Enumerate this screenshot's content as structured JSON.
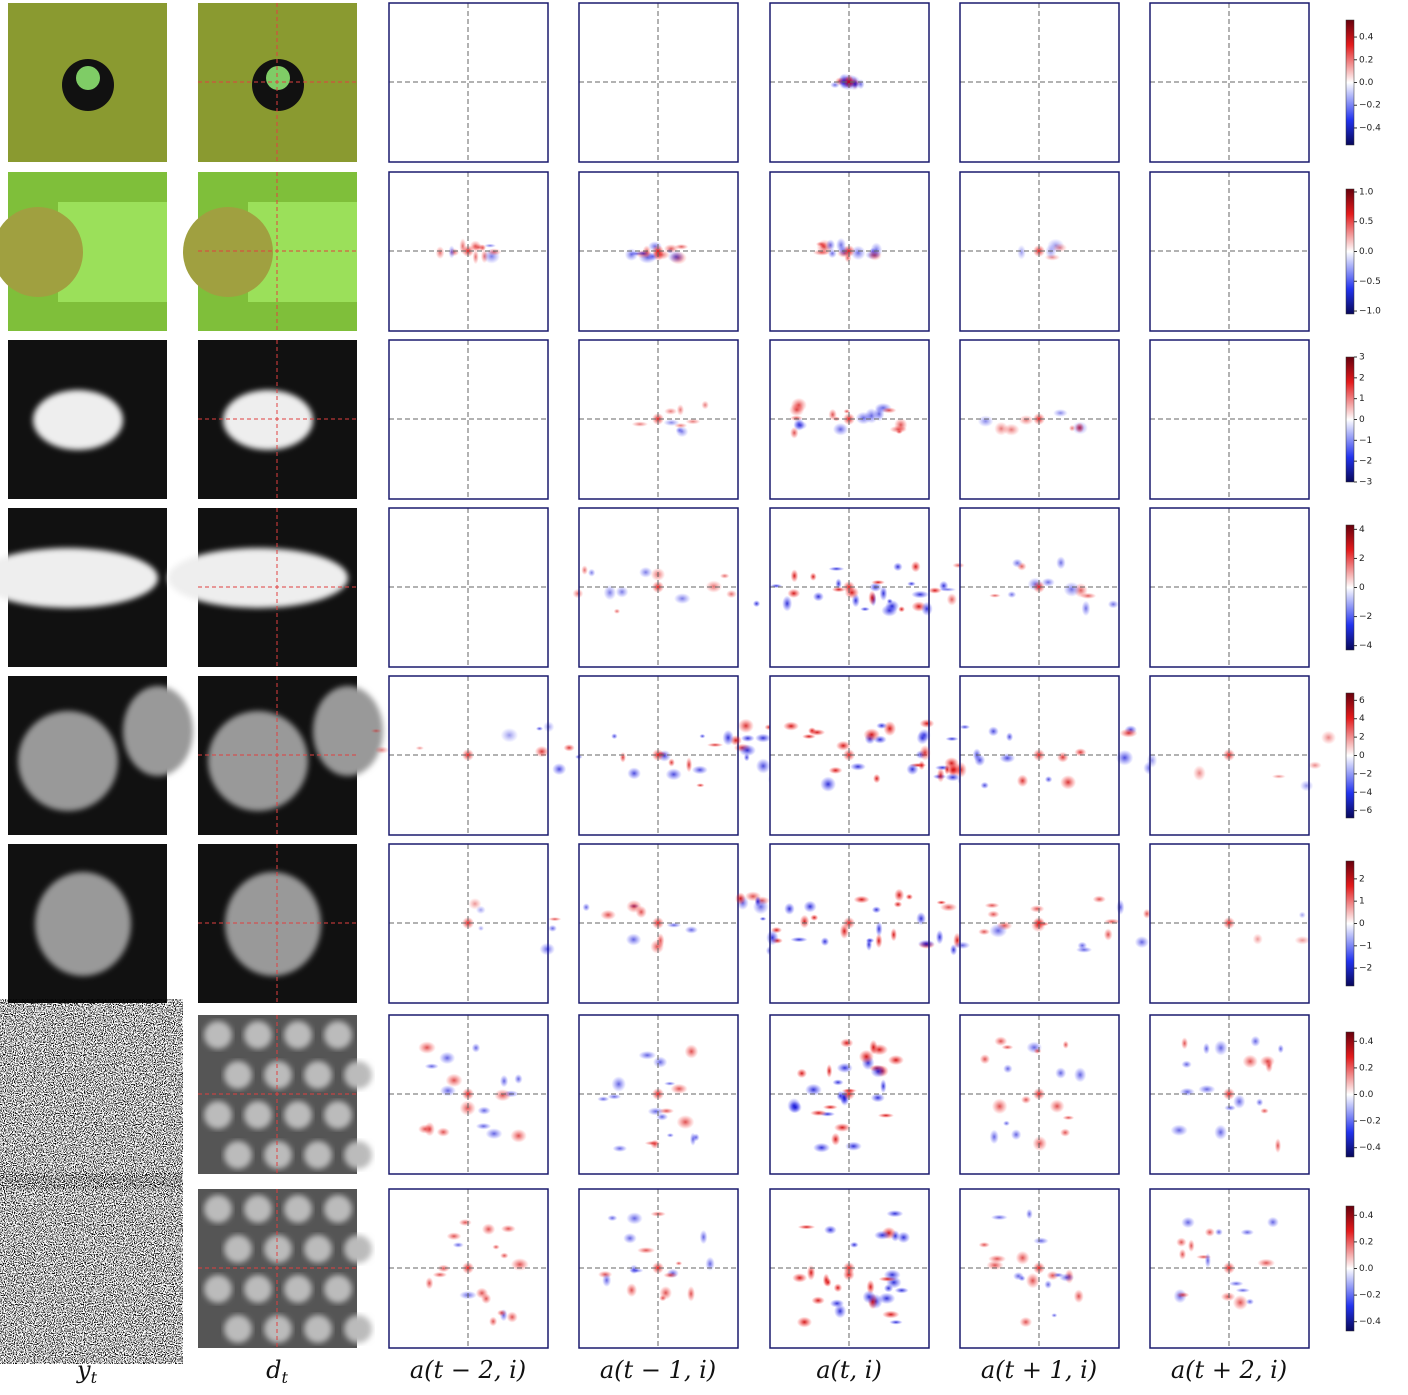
{
  "columns": [
    {
      "text": "y",
      "sub": "t"
    },
    {
      "text": "d",
      "sub": "t"
    },
    {
      "text": "a(t − 2, i)"
    },
    {
      "text": "a(t − 1, i)"
    },
    {
      "text": "a(t, i)"
    },
    {
      "text": "a(t + 1, i)"
    },
    {
      "text": "a(t + 2, i)"
    }
  ],
  "rows": [
    {
      "colorbar": {
        "lim": [
          -0.55,
          0.55
        ],
        "ticks": [
          {
            "value": 0.4,
            "label": "0.4"
          },
          {
            "value": 0.2,
            "label": "0.2"
          },
          {
            "value": 0,
            "label": "0.0"
          },
          {
            "value": -0.2,
            "label": "−0.2"
          },
          {
            "value": -0.4,
            "label": "−0.4"
          }
        ]
      }
    },
    {
      "colorbar": {
        "lim": [
          -1.05,
          1.05
        ],
        "ticks": [
          {
            "value": 1,
            "label": "1.0"
          },
          {
            "value": 0.5,
            "label": "0.5"
          },
          {
            "value": 0,
            "label": "0.0"
          },
          {
            "value": -0.5,
            "label": "−0.5"
          },
          {
            "value": -1,
            "label": "−1.0"
          }
        ]
      }
    },
    {
      "colorbar": {
        "lim": [
          -3,
          3
        ],
        "ticks": [
          {
            "value": 3,
            "label": "3"
          },
          {
            "value": 2,
            "label": "2"
          },
          {
            "value": 1,
            "label": "1"
          },
          {
            "value": 0,
            "label": "0"
          },
          {
            "value": -1,
            "label": "−1"
          },
          {
            "value": -2,
            "label": "−2"
          },
          {
            "value": -3,
            "label": "−3"
          }
        ]
      }
    },
    {
      "colorbar": {
        "lim": [
          -4.3,
          4.3
        ],
        "ticks": [
          {
            "value": 4,
            "label": "4"
          },
          {
            "value": 2,
            "label": "2"
          },
          {
            "value": 0,
            "label": "0"
          },
          {
            "value": -2,
            "label": "−2"
          },
          {
            "value": -4,
            "label": "−4"
          }
        ]
      }
    },
    {
      "colorbar": {
        "lim": [
          -6.8,
          6.8
        ],
        "ticks": [
          {
            "value": 6,
            "label": "6"
          },
          {
            "value": 4,
            "label": "4"
          },
          {
            "value": 2,
            "label": "2"
          },
          {
            "value": 0,
            "label": "0"
          },
          {
            "value": -2,
            "label": "−2"
          },
          {
            "value": -4,
            "label": "−4"
          },
          {
            "value": -6,
            "label": "−6"
          }
        ]
      }
    },
    {
      "colorbar": {
        "lim": [
          -2.8,
          2.8
        ],
        "ticks": [
          {
            "value": 2,
            "label": "2"
          },
          {
            "value": 1,
            "label": "1"
          },
          {
            "value": 0,
            "label": "0"
          },
          {
            "value": -1,
            "label": "−1"
          },
          {
            "value": -2,
            "label": "−2"
          }
        ]
      }
    },
    {
      "colorbar": {
        "lim": [
          -0.47,
          0.47
        ],
        "ticks": [
          {
            "value": 0.4,
            "label": "0.4"
          },
          {
            "value": 0.2,
            "label": "0.2"
          },
          {
            "value": 0,
            "label": "0.0"
          },
          {
            "value": -0.2,
            "label": "−0.2"
          },
          {
            "value": -0.4,
            "label": "−0.4"
          }
        ]
      }
    },
    {
      "colorbar": {
        "lim": [
          -0.47,
          0.47
        ],
        "ticks": [
          {
            "value": 0.4,
            "label": "0.4"
          },
          {
            "value": 0.2,
            "label": "0.2"
          },
          {
            "value": 0,
            "label": "0.0"
          },
          {
            "value": -0.2,
            "label": "−0.2"
          },
          {
            "value": -0.4,
            "label": "−0.4"
          }
        ]
      }
    }
  ]
}
